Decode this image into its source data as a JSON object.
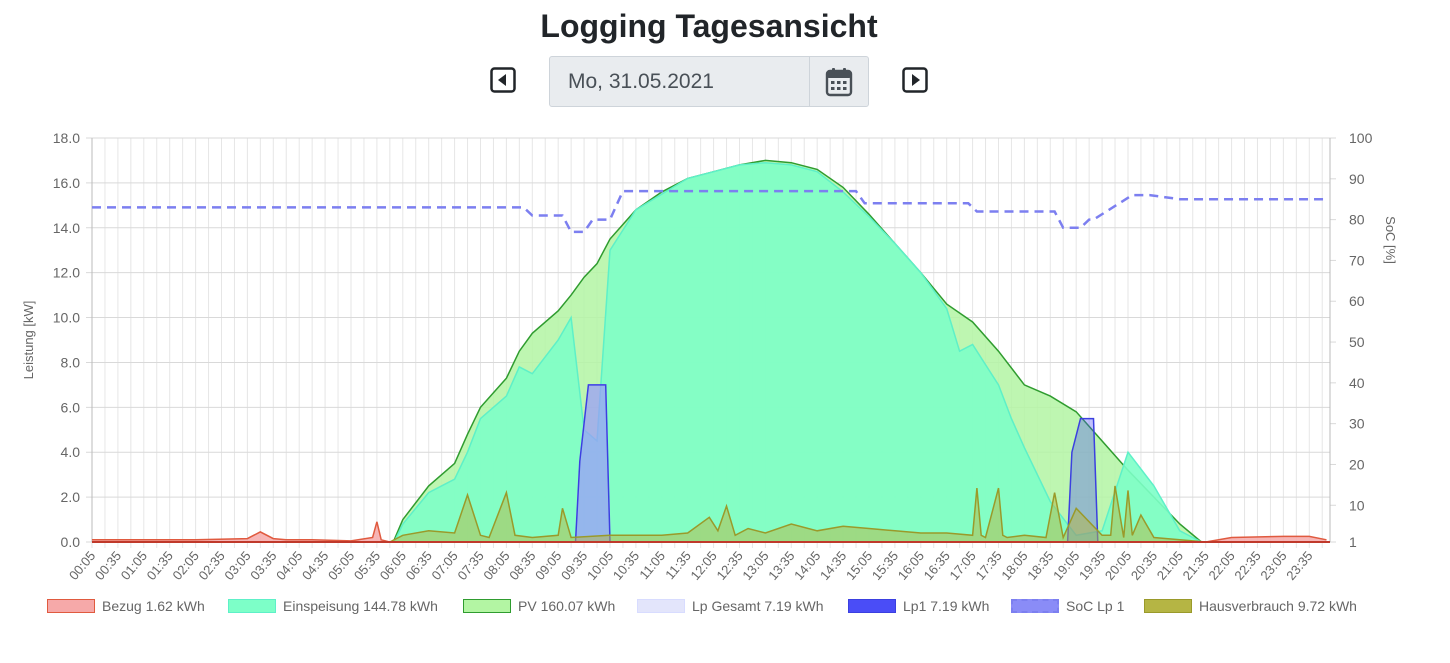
{
  "page": {
    "title": "Logging Tagesansicht",
    "date_value": "Mo, 31.05.2021",
    "prev_icon": "caret-left-square-icon",
    "next_icon": "caret-right-square-icon",
    "calendar_icon": "calendar-icon"
  },
  "chart_data": {
    "type": "area",
    "x_ticks": [
      "00:05",
      "00:35",
      "01:05",
      "01:35",
      "02:05",
      "02:35",
      "03:05",
      "03:35",
      "04:05",
      "04:35",
      "05:05",
      "05:35",
      "06:05",
      "06:35",
      "07:05",
      "07:35",
      "08:05",
      "08:35",
      "09:05",
      "09:35",
      "10:05",
      "10:35",
      "11:05",
      "11:35",
      "12:05",
      "12:35",
      "13:05",
      "13:35",
      "14:05",
      "14:35",
      "15:05",
      "15:35",
      "16:05",
      "16:35",
      "17:05",
      "17:35",
      "18:05",
      "18:35",
      "19:05",
      "19:35",
      "20:05",
      "20:35",
      "21:05",
      "21:35",
      "22:05",
      "22:35",
      "23:05",
      "23:35"
    ],
    "ylabel": "Leistung [kW]",
    "ylim": [
      0,
      18
    ],
    "y_ticks": [
      "0.0",
      "2.0",
      "4.0",
      "6.0",
      "8.0",
      "10.0",
      "12.0",
      "14.0",
      "16.0",
      "18.0"
    ],
    "y2label": "SoC [%]",
    "y2_ticks": [
      "1",
      "10",
      "20",
      "30",
      "40",
      "50",
      "60",
      "70",
      "80",
      "90",
      "100"
    ],
    "grid": true,
    "legend_position": "bottom",
    "series": [
      {
        "name": "Bezug 1.62 kWh",
        "axis": "left",
        "color": "#e05a3f",
        "fill": "#f6a9a9",
        "x": [
          "00:05",
          "01:05",
          "02:05",
          "03:05",
          "03:20",
          "03:35",
          "03:50",
          "04:20",
          "05:05",
          "05:30",
          "05:35",
          "05:40",
          "05:50",
          "21:35",
          "22:05",
          "23:05",
          "23:35",
          "23:55"
        ],
        "values": [
          0.1,
          0.1,
          0.1,
          0.15,
          0.45,
          0.15,
          0.1,
          0.1,
          0.05,
          0.2,
          0.9,
          0.1,
          0,
          0,
          0.2,
          0.25,
          0.25,
          0.1
        ]
      },
      {
        "name": "Einspeisung 144.78 kWh",
        "axis": "left",
        "color": "#5ef0c8",
        "fill": "#7dffc8",
        "x": [
          "05:55",
          "06:05",
          "06:35",
          "07:05",
          "07:20",
          "07:35",
          "08:05",
          "08:20",
          "08:35",
          "09:05",
          "09:20",
          "09:35",
          "09:50",
          "10:05",
          "10:35",
          "11:05",
          "11:35",
          "12:05",
          "12:35",
          "13:05",
          "13:35",
          "14:05",
          "14:35",
          "15:05",
          "15:35",
          "16:05",
          "16:35",
          "16:50",
          "17:05",
          "17:35",
          "17:50",
          "18:05",
          "18:35",
          "19:05",
          "19:35",
          "20:05",
          "20:35",
          "21:05",
          "21:30"
        ],
        "values": [
          0,
          0.8,
          2.2,
          2.8,
          4.0,
          5.5,
          6.5,
          7.8,
          7.5,
          9.0,
          10.0,
          5.0,
          4.5,
          13.0,
          14.8,
          15.5,
          16.2,
          16.5,
          16.8,
          16.9,
          16.8,
          16.5,
          15.6,
          14.5,
          13.3,
          12.0,
          10.4,
          8.5,
          8.8,
          7.0,
          5.5,
          4.2,
          1.8,
          0.3,
          0.5,
          4.0,
          2.5,
          0.5,
          0
        ]
      },
      {
        "name": "PV 160.07 kWh",
        "axis": "left",
        "color": "#2f9c2f",
        "fill": "#b3f5a3",
        "x": [
          "05:55",
          "06:05",
          "06:35",
          "07:05",
          "07:20",
          "07:35",
          "08:05",
          "08:20",
          "08:35",
          "09:05",
          "09:20",
          "09:35",
          "09:50",
          "10:05",
          "10:35",
          "11:05",
          "11:35",
          "12:05",
          "12:35",
          "13:05",
          "13:35",
          "14:05",
          "14:35",
          "15:05",
          "15:35",
          "16:05",
          "16:35",
          "17:05",
          "17:35",
          "18:05",
          "18:35",
          "19:05",
          "19:35",
          "20:05",
          "20:35",
          "21:05",
          "21:30"
        ],
        "values": [
          0.1,
          1.0,
          2.5,
          3.5,
          4.8,
          6.0,
          7.3,
          8.5,
          9.3,
          10.3,
          11.0,
          11.8,
          12.4,
          13.5,
          14.8,
          15.6,
          16.2,
          16.5,
          16.8,
          17.0,
          16.9,
          16.6,
          15.8,
          14.6,
          13.3,
          12.0,
          10.6,
          9.8,
          8.5,
          7.0,
          6.5,
          5.8,
          4.5,
          3.2,
          2.0,
          0.8,
          0
        ]
      },
      {
        "name": "Lp Gesamt 7.19 kWh",
        "axis": "left",
        "color": "#d8dcff",
        "fill": "#e3e5fb",
        "x": [
          "09:20",
          "09:25",
          "09:30",
          "09:40",
          "10:00",
          "10:05",
          "10:10"
        ],
        "values": [
          0,
          0,
          3.6,
          7.0,
          7.0,
          0,
          0
        ]
      },
      {
        "name": "Lp1 7.19 kWh",
        "axis": "left",
        "color": "#3b40e0",
        "fill": "#4a4df7",
        "x": [
          "09:20",
          "09:25",
          "09:30",
          "09:40",
          "10:00",
          "10:05",
          "10:10",
          "18:50",
          "18:55",
          "19:00",
          "19:10",
          "19:25",
          "19:30",
          "19:35"
        ],
        "values": [
          0,
          0,
          3.6,
          7.0,
          7.0,
          0,
          0,
          0,
          0,
          4.0,
          5.5,
          5.5,
          0,
          0
        ]
      },
      {
        "name": "SoC Lp 1",
        "axis": "right",
        "color": "#7c7ff0",
        "fill": "#8a8cf7",
        "dashed": true,
        "x": [
          "00:05",
          "08:25",
          "08:35",
          "09:10",
          "09:20",
          "09:35",
          "09:45",
          "10:05",
          "10:20",
          "14:50",
          "15:00",
          "15:20",
          "17:00",
          "17:10",
          "18:40",
          "18:50",
          "19:10",
          "19:20",
          "19:25",
          "20:10",
          "20:30",
          "21:05",
          "23:55"
        ],
        "values": [
          83,
          83,
          81,
          81,
          77,
          77,
          80,
          80,
          87,
          87,
          84,
          84,
          84,
          82,
          82,
          78,
          78,
          80,
          80,
          86,
          86,
          85,
          85
        ]
      },
      {
        "name": "Hausverbrauch 9.72 kWh",
        "axis": "left",
        "color": "#9a9a2a",
        "fill": "#b5b544",
        "x": [
          "05:50",
          "06:05",
          "06:35",
          "07:05",
          "07:20",
          "07:35",
          "07:45",
          "08:05",
          "08:15",
          "08:35",
          "09:05",
          "09:10",
          "09:20",
          "10:05",
          "11:05",
          "11:35",
          "12:00",
          "12:10",
          "12:20",
          "12:30",
          "12:45",
          "13:05",
          "13:35",
          "14:05",
          "14:35",
          "15:05",
          "15:35",
          "16:05",
          "16:35",
          "17:05",
          "17:10",
          "17:15",
          "17:20",
          "17:35",
          "17:40",
          "17:45",
          "18:05",
          "18:30",
          "18:40",
          "18:50",
          "19:05",
          "19:35",
          "19:45",
          "19:50",
          "20:00",
          "20:05",
          "20:10",
          "20:20",
          "20:35",
          "21:05",
          "21:35"
        ],
        "values": [
          0,
          0.3,
          0.5,
          0.4,
          2.1,
          0.3,
          0.2,
          2.2,
          0.3,
          0.2,
          0.3,
          1.5,
          0.2,
          0.3,
          0.3,
          0.4,
          1.1,
          0.5,
          1.6,
          0.3,
          0.6,
          0.4,
          0.8,
          0.5,
          0.7,
          0.6,
          0.5,
          0.4,
          0.4,
          0.3,
          2.4,
          0.3,
          0.2,
          2.4,
          0.3,
          0.2,
          0.3,
          0.2,
          2.2,
          0.2,
          1.5,
          0.3,
          0.3,
          2.5,
          0.2,
          2.3,
          0.3,
          1.2,
          0.2,
          0.1,
          0
        ]
      }
    ]
  }
}
